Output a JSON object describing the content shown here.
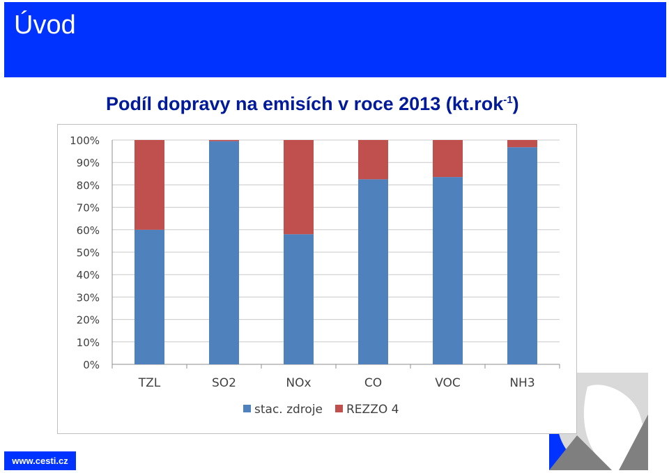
{
  "header": {
    "title": "Úvod"
  },
  "slide": {
    "title": "Podíl dopravy na emisích v roce 2013 (kt.rok",
    "title_sup": "-1",
    "title_end": ")"
  },
  "footer": {
    "url": "www.cesti.cz"
  },
  "colors": {
    "header_bg": "#0033ff",
    "series1": "#4f81bd",
    "series2": "#c0504d"
  },
  "chart_data": {
    "type": "bar",
    "stacked": true,
    "percent": true,
    "categories": [
      "TZL",
      "SO2",
      "NOx",
      "CO",
      "VOC",
      "NH3"
    ],
    "series": [
      {
        "name": "stac. zdroje",
        "color": "#4f81bd",
        "values": [
          60,
          99.5,
          58,
          82.5,
          83.5,
          96.8
        ]
      },
      {
        "name": "REZZO 4",
        "color": "#c0504d",
        "values": [
          40,
          0.5,
          42,
          17.5,
          16.5,
          3.2
        ]
      }
    ],
    "yticks": [
      "0%",
      "10%",
      "20%",
      "30%",
      "40%",
      "50%",
      "60%",
      "70%",
      "80%",
      "90%",
      "100%"
    ],
    "ylim": [
      0,
      100
    ],
    "grid": true,
    "legend": "bottom"
  }
}
